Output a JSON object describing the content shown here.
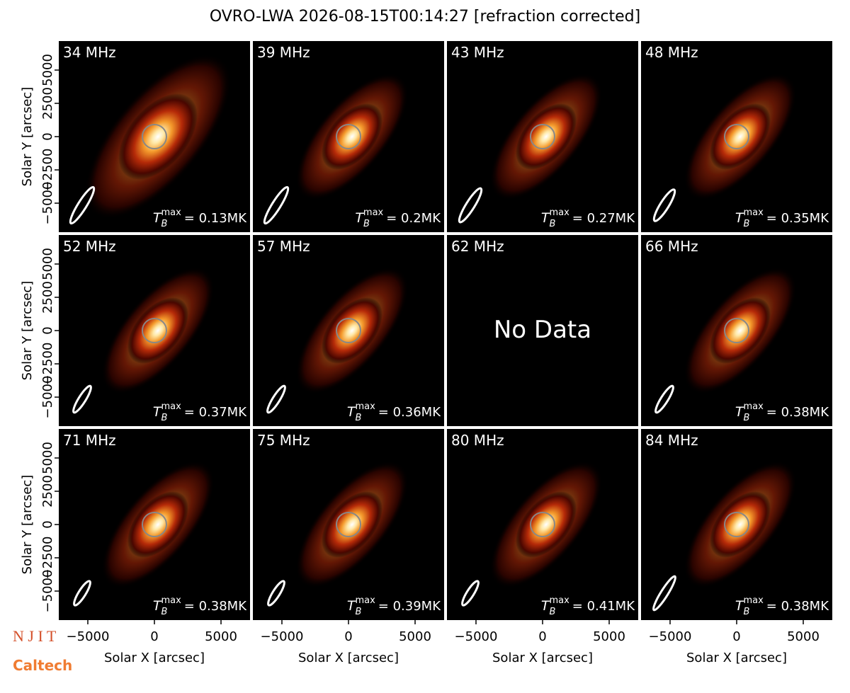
{
  "title": "OVRO-LWA 2026-08-15T00:14:27 [refraction corrected]",
  "logos": [
    "N J I T",
    "Caltech"
  ],
  "axes": {
    "xlabel": "Solar X [arcsec]",
    "ylabel": "Solar Y [arcsec]",
    "xlim": [
      -7180,
      7180
    ],
    "ylim": [
      -7180,
      7180
    ],
    "xticks": [
      {
        "value": -5000,
        "label": "−5000"
      },
      0,
      5000
    ],
    "yticks": [
      {
        "value": -5000,
        "label": "−5000"
      },
      {
        "value": -2500,
        "label": "−2500"
      },
      0,
      2500,
      5000
    ]
  },
  "tb_symbol": "T",
  "tb_sub": "B",
  "tb_sup": "max",
  "chart_data": [
    {
      "type": "image",
      "title": "34 MHz",
      "annotation": "= 0.13MK"
    },
    {
      "type": "image",
      "title": "39 MHz",
      "annotation": "= 0.2MK"
    },
    {
      "type": "image",
      "title": "43 MHz",
      "annotation": "= 0.27MK"
    },
    {
      "type": "image",
      "title": "48 MHz",
      "annotation": "= 0.35MK"
    },
    {
      "type": "image",
      "title": "52 MHz",
      "annotation": "= 0.37MK"
    },
    {
      "type": "image",
      "title": "57 MHz",
      "annotation": "= 0.36MK"
    },
    {
      "type": "empty",
      "title": "62 MHz",
      "message": "No Data"
    },
    {
      "type": "image",
      "title": "66 MHz",
      "annotation": "= 0.38MK"
    },
    {
      "type": "image",
      "title": "71 MHz",
      "annotation": "= 0.38MK"
    },
    {
      "type": "image",
      "title": "75 MHz",
      "annotation": "= 0.39MK"
    },
    {
      "type": "image",
      "title": "80 MHz",
      "annotation": "= 0.41MK"
    },
    {
      "type": "image",
      "title": "84 MHz",
      "annotation": "= 0.38MK"
    }
  ]
}
